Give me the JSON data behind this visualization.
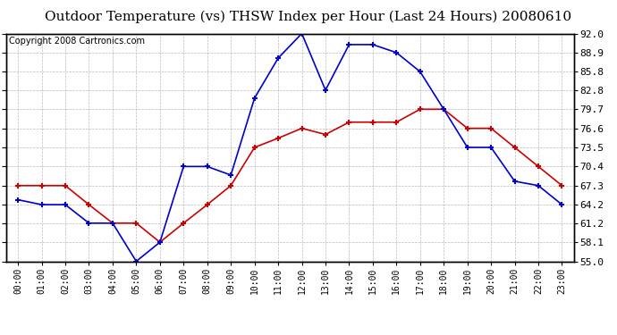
{
  "title": "Outdoor Temperature (vs) THSW Index per Hour (Last 24 Hours) 20080610",
  "copyright": "Copyright 2008 Cartronics.com",
  "x_labels": [
    "00:00",
    "01:00",
    "02:00",
    "03:00",
    "04:00",
    "05:00",
    "06:00",
    "07:00",
    "08:00",
    "09:00",
    "10:00",
    "11:00",
    "12:00",
    "13:00",
    "14:00",
    "15:00",
    "16:00",
    "17:00",
    "18:00",
    "19:00",
    "20:00",
    "21:00",
    "22:00",
    "23:00"
  ],
  "temp_outdoor": [
    67.3,
    67.3,
    67.3,
    64.2,
    61.2,
    61.2,
    58.1,
    61.2,
    64.2,
    67.3,
    73.5,
    75.0,
    76.6,
    75.6,
    77.6,
    77.6,
    77.6,
    79.7,
    79.7,
    76.6,
    76.6,
    73.5,
    70.4,
    67.3
  ],
  "thsw_index": [
    65.0,
    64.2,
    64.2,
    61.2,
    61.2,
    55.0,
    58.1,
    70.4,
    70.4,
    69.0,
    81.5,
    88.0,
    92.0,
    82.8,
    90.2,
    90.2,
    88.9,
    85.8,
    79.7,
    73.5,
    73.5,
    68.0,
    67.3,
    64.2
  ],
  "y_ticks": [
    55.0,
    58.1,
    61.2,
    64.2,
    67.3,
    70.4,
    73.5,
    76.6,
    79.7,
    82.8,
    85.8,
    88.9,
    92.0
  ],
  "y_min": 55.0,
  "y_max": 92.0,
  "line_color_temp": "#cc0000",
  "line_color_thsw": "#0000cc",
  "bg_color": "#ffffff",
  "plot_bg_color": "#ffffff",
  "grid_color": "#aaaaaa",
  "title_fontsize": 11,
  "copyright_fontsize": 7
}
